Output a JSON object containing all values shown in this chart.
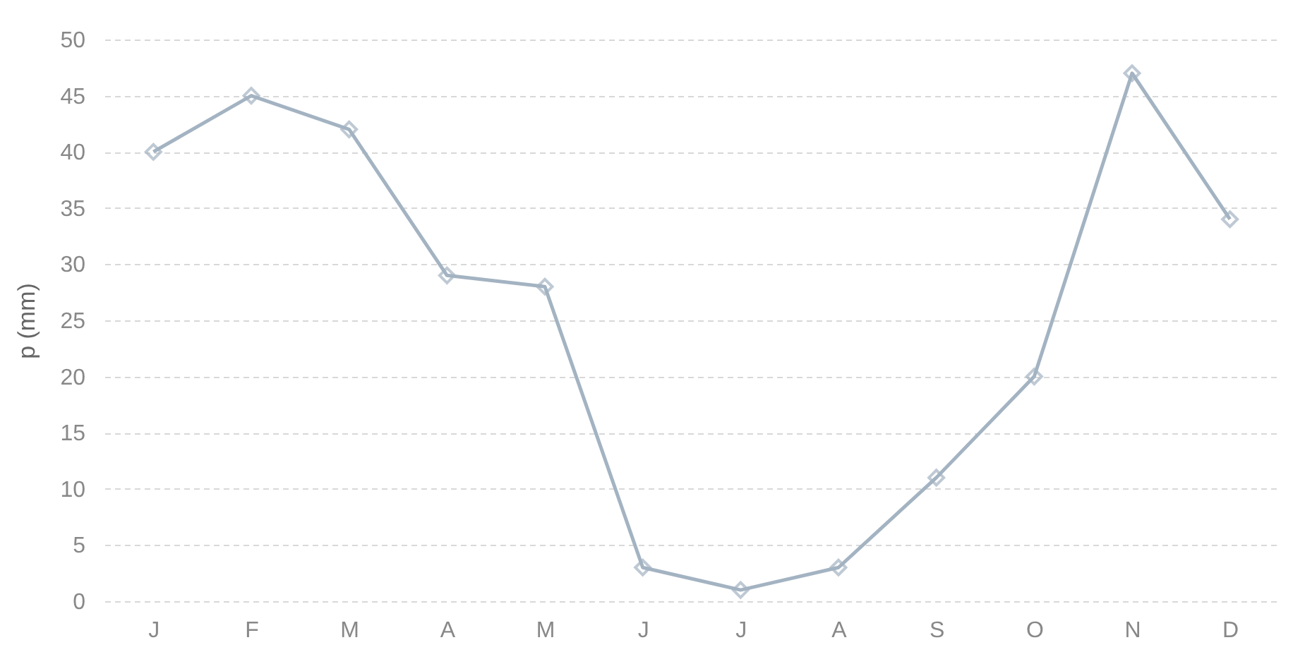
{
  "chart_data": {
    "type": "line",
    "ylabel": "p (mm)",
    "categories": [
      "J",
      "F",
      "M",
      "A",
      "M",
      "J",
      "J",
      "A",
      "S",
      "O",
      "N",
      "D"
    ],
    "series": [
      {
        "color": "#a3b3c2",
        "values": [
          40,
          45,
          42,
          29,
          28,
          3,
          1,
          3,
          11,
          20,
          47,
          34
        ]
      }
    ],
    "ylim": [
      0,
      50
    ],
    "yticks": [
      0,
      5,
      10,
      15,
      20,
      25,
      30,
      35,
      40,
      45,
      50
    ],
    "grid": "y",
    "marker": "diamond",
    "line_style": "solid",
    "legend": false
  }
}
